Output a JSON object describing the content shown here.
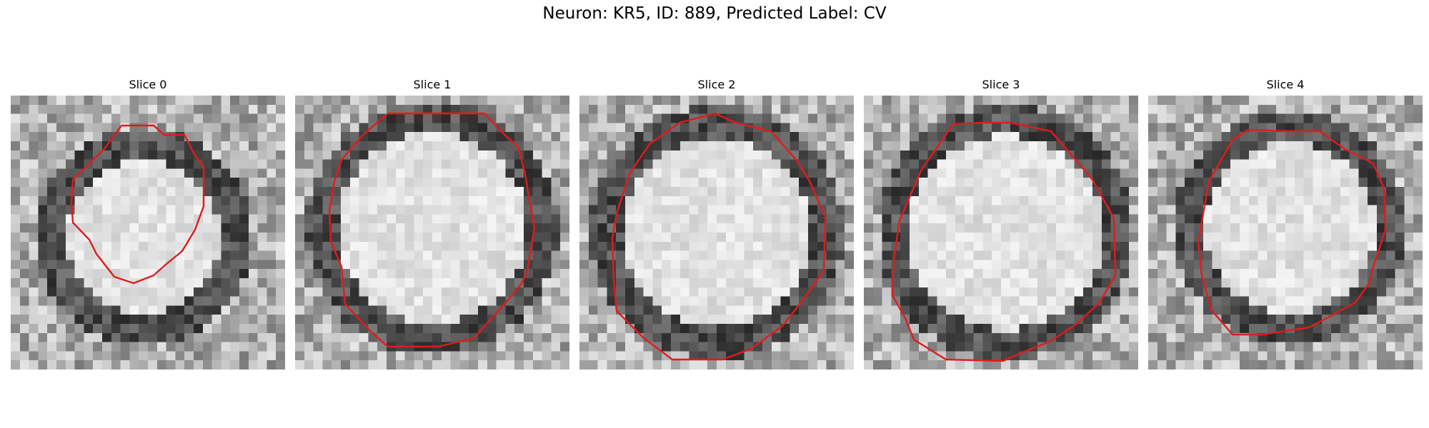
{
  "title": "Neuron: KR5, ID: 889, Predicted Label: CV",
  "contour_color": "#e31a1c",
  "slices": [
    {
      "label": "Slice 0"
    },
    {
      "label": "Slice 1"
    },
    {
      "label": "Slice 2"
    },
    {
      "label": "Slice 3"
    },
    {
      "label": "Slice 4"
    }
  ]
}
